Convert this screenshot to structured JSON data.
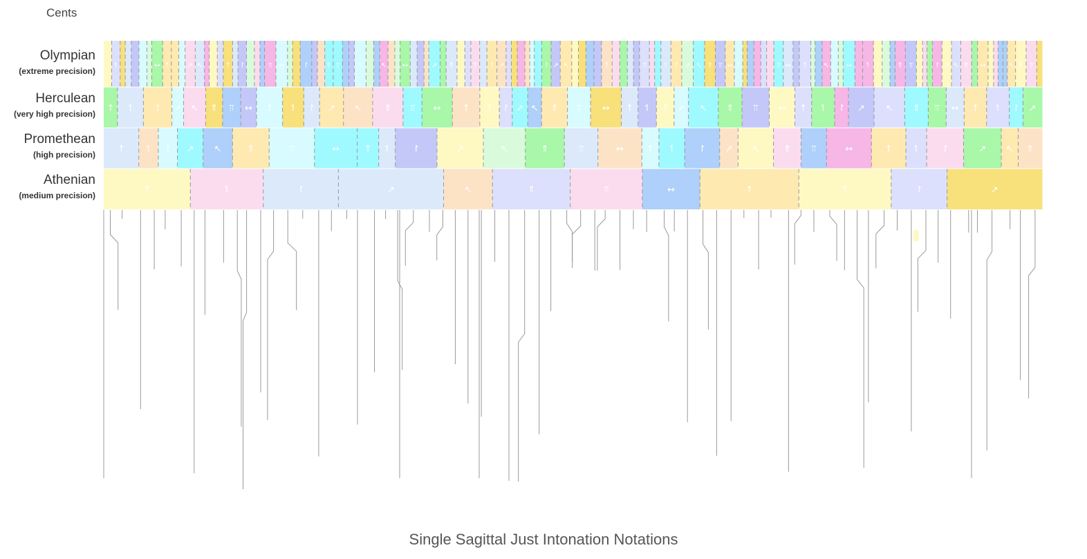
{
  "header": {
    "units_label": "Cents"
  },
  "title": "Single Sagittal Just Intonation Notations",
  "levels": [
    {
      "name": "Olympian",
      "precision": "(extreme precision)",
      "columns": 120
    },
    {
      "name": "Herculean",
      "precision": "(very high precision)",
      "columns": 44
    },
    {
      "name": "Promethean",
      "precision": "(high precision)",
      "columns": 30
    },
    {
      "name": "Athenian",
      "precision": "(medium precision)",
      "columns": 12
    }
  ],
  "colors": {
    "palette": [
      "#fde3c6",
      "#fef9c3",
      "#d7fbff",
      "#dce0fc",
      "#d9fbdc",
      "#fbdcef",
      "#9efaff",
      "#f8e07a",
      "#a9f7a9",
      "#aed0fa",
      "#dbe9fb",
      "#f6b6e6",
      "#c4c8f8",
      "#fee9b0"
    ],
    "boundary_line": "#999999",
    "symbol": "#ffffff"
  }
}
